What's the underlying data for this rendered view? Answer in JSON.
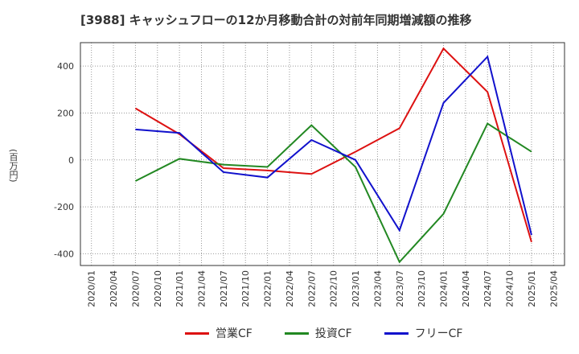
{
  "chart_data": {
    "type": "line",
    "title": "[3988]  キャッシュフローの12か月移動合計の対前年同期増減額の推移",
    "ylabel": "(百万円)",
    "xlabel": "",
    "ylim": [
      -450,
      500
    ],
    "yticks": [
      -400,
      -200,
      0,
      200,
      400
    ],
    "x": [
      "2020/01",
      "2020/04",
      "2020/07",
      "2020/10",
      "2021/01",
      "2021/04",
      "2021/07",
      "2021/10",
      "2022/01",
      "2022/04",
      "2022/07",
      "2022/10",
      "2023/01",
      "2023/04",
      "2023/07",
      "2023/10",
      "2024/01",
      "2024/04",
      "2024/07",
      "2024/10",
      "2025/01",
      "2025/04"
    ],
    "grid": true,
    "legend_position": "bottom",
    "series": [
      {
        "name": "営業CF",
        "color": "#dd1111",
        "points": [
          [
            2,
            220
          ],
          [
            4,
            110
          ],
          [
            6,
            -35
          ],
          [
            8,
            -45
          ],
          [
            10,
            -60
          ],
          [
            12,
            35
          ],
          [
            14,
            135
          ],
          [
            16,
            475
          ],
          [
            18,
            290
          ],
          [
            20,
            -350
          ]
        ]
      },
      {
        "name": "投資CF",
        "color": "#228822",
        "points": [
          [
            2,
            -90
          ],
          [
            4,
            5
          ],
          [
            6,
            -20
          ],
          [
            8,
            -30
          ],
          [
            10,
            148
          ],
          [
            12,
            -30
          ],
          [
            14,
            -435
          ],
          [
            16,
            -230
          ],
          [
            18,
            155
          ],
          [
            20,
            35
          ]
        ]
      },
      {
        "name": "フリーCF",
        "color": "#1111cc",
        "points": [
          [
            2,
            130
          ],
          [
            4,
            115
          ],
          [
            6,
            -52
          ],
          [
            8,
            -75
          ],
          [
            10,
            85
          ],
          [
            12,
            0
          ],
          [
            14,
            -300
          ],
          [
            16,
            243
          ],
          [
            18,
            440
          ],
          [
            20,
            -320
          ]
        ]
      }
    ]
  }
}
